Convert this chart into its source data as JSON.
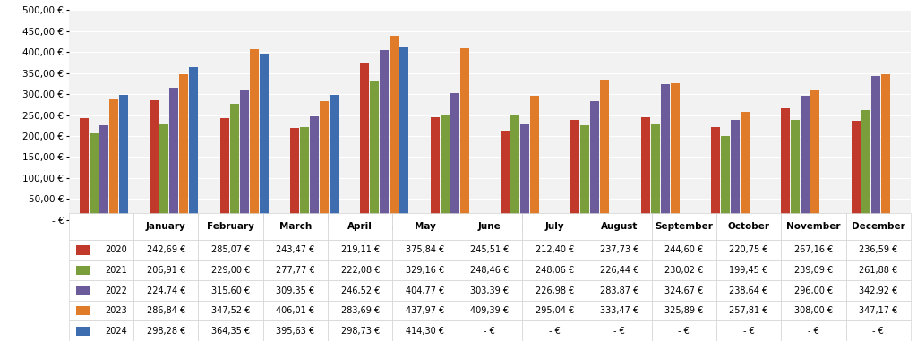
{
  "months": [
    "January",
    "February",
    "March",
    "April",
    "May",
    "June",
    "July",
    "August",
    "September",
    "October",
    "November",
    "December"
  ],
  "series": {
    "2020": [
      242.69,
      285.07,
      243.47,
      219.11,
      375.84,
      245.51,
      212.4,
      237.73,
      244.6,
      220.75,
      267.16,
      236.59
    ],
    "2021": [
      206.91,
      229.0,
      277.77,
      222.08,
      329.16,
      248.46,
      248.06,
      226.44,
      230.02,
      199.45,
      239.09,
      261.88
    ],
    "2022": [
      224.74,
      315.6,
      309.35,
      246.52,
      404.77,
      303.39,
      226.98,
      283.87,
      324.67,
      238.64,
      296.0,
      342.92
    ],
    "2023": [
      286.84,
      347.52,
      406.01,
      283.69,
      437.97,
      409.39,
      295.04,
      333.47,
      325.89,
      257.81,
      308.0,
      347.17
    ],
    "2024": [
      298.28,
      364.35,
      395.63,
      298.73,
      414.3,
      null,
      null,
      null,
      null,
      null,
      null,
      null
    ]
  },
  "colors": {
    "2020": "#c0392b",
    "2021": "#7a9e3b",
    "2022": "#6b5b9a",
    "2023": "#e07b2a",
    "2024": "#3d6dae"
  },
  "ylim": [
    0,
    500
  ],
  "yticks": [
    0,
    50,
    100,
    150,
    200,
    250,
    300,
    350,
    400,
    450,
    500
  ],
  "ytick_labels": [
    "- €",
    "50,00 €",
    "100,00 €",
    "150,00 €",
    "200,00 €",
    "250,00 €",
    "300,00 €",
    "350,00 €",
    "400,00 €",
    "450,00 €",
    "500,00 €"
  ],
  "table_years": [
    "2020",
    "2021",
    "2022",
    "2023",
    "2024"
  ],
  "null_display": "- €",
  "bar_width": 0.14,
  "figsize": [
    10.24,
    3.81
  ],
  "dpi": 100
}
